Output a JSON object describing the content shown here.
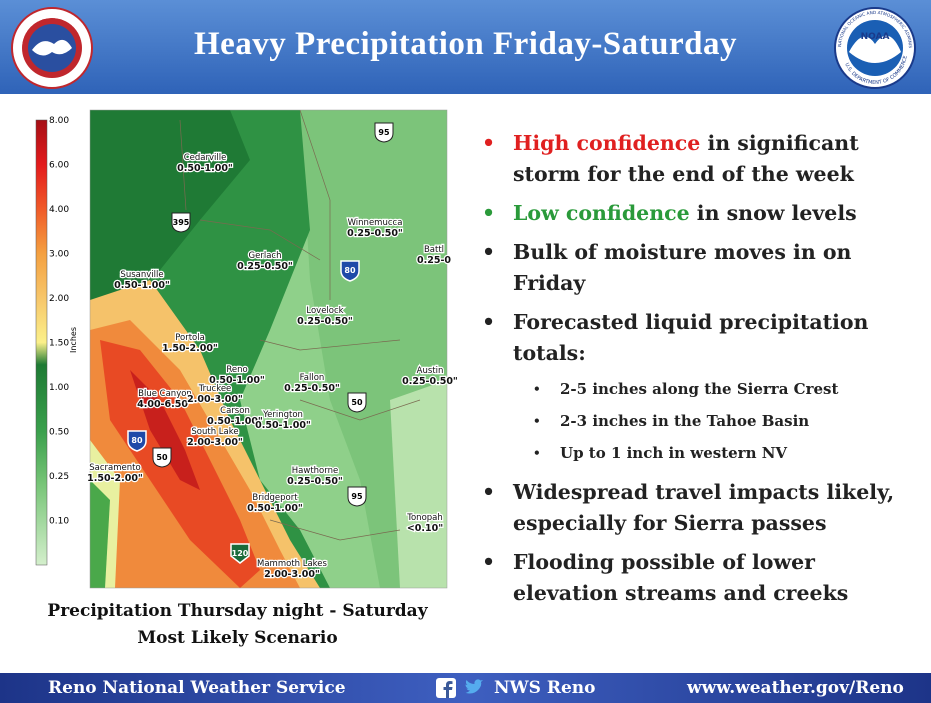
{
  "header": {
    "title": "Heavy Precipitation Friday-Saturday",
    "left_logo": "NATIONAL WEATHER SERVICE",
    "right_logo": {
      "abbr": "NOAA",
      "name": "NATIONAL OCEANIC AND ATMOSPHERIC ADMINISTRATION",
      "department": "U.S. DEPARTMENT OF COMMERCE"
    }
  },
  "map": {
    "legend": {
      "title": "Inches",
      "labels": [
        "8.00",
        "6.00",
        "4.00",
        "3.00",
        "2.00",
        "1.50",
        "1.00",
        "0.50",
        "0.25",
        "0.10"
      ]
    },
    "places": [
      {
        "name": "Cedarville",
        "range": "0.50-1.00\""
      },
      {
        "name": "Gerlach",
        "range": "0.25-0.50\""
      },
      {
        "name": "Winnemucca",
        "range": "0.25-0.50\""
      },
      {
        "name": "Battl",
        "range": "0.25-0"
      },
      {
        "name": "Susanville",
        "range": "0.50-1.00\""
      },
      {
        "name": "Lovelock",
        "range": "0.25-0.50\""
      },
      {
        "name": "Portola",
        "range": "1.50-2.00\""
      },
      {
        "name": "Reno",
        "range": "0.50-1.00\""
      },
      {
        "name": "Fallon",
        "range": "0.25-0.50\""
      },
      {
        "name": "Austin",
        "range": "0.25-0.50\""
      },
      {
        "name": "Blue Canyon",
        "range": "4.00-6.50\""
      },
      {
        "name": "Truckee",
        "range": "2.00-3.00\""
      },
      {
        "name": "Carson",
        "range": "0.50-1.00\""
      },
      {
        "name": "Yerington",
        "range": "0.50-1.00\""
      },
      {
        "name": "South Lake",
        "range": "2.00-3.00\""
      },
      {
        "name": "Sacramento",
        "range": "1.50-2.00\""
      },
      {
        "name": "Hawthorne",
        "range": "0.25-0.50\""
      },
      {
        "name": "Bridgeport",
        "range": "0.50-1.00\""
      },
      {
        "name": "Tonopah",
        "range": "<0.10\""
      },
      {
        "name": "Mammoth Lakes",
        "range": "2.00-3.00\""
      }
    ],
    "highways": [
      "95",
      "395",
      "80",
      "50",
      "80",
      "50",
      "95",
      "120"
    ],
    "caption": [
      "Precipitation Thursday night - Saturday",
      "Most Likely Scenario"
    ]
  },
  "bullets": [
    {
      "highlight": "High confidence",
      "text": "in significant storm for the end of the week"
    },
    {
      "highlight": "Low confidence",
      "text": "in snow levels"
    },
    {
      "text": "Bulk of moisture moves in on Friday"
    },
    {
      "text": "Forecasted liquid precipitation totals:",
      "sub": [
        "2-5 inches along the Sierra Crest",
        "2-3 inches in the Tahoe Basin",
        "Up to 1 inch in western NV"
      ]
    },
    {
      "text": "Widespread travel impacts likely, especially for Sierra passes"
    },
    {
      "text": "Flooding possible of lower elevation streams and creeks"
    }
  ],
  "footer": {
    "office": "Reno National Weather Service",
    "social": "NWS Reno",
    "url": "www.weather.gov/Reno"
  }
}
